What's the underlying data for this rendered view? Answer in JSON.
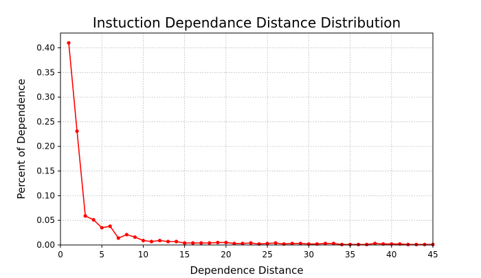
{
  "chart_data": {
    "type": "line",
    "title": "Instuction Dependance Distance Distribution",
    "xlabel": "Dependence Distance",
    "ylabel": "Percent of Dependence",
    "xlim": [
      0,
      45
    ],
    "ylim": [
      0,
      0.43
    ],
    "xticks": [
      "0",
      "5",
      "10",
      "15",
      "20",
      "25",
      "30",
      "35",
      "40",
      "45"
    ],
    "yticks": [
      "0.00",
      "0.05",
      "0.10",
      "0.15",
      "0.20",
      "0.25",
      "0.30",
      "0.35",
      "0.40"
    ],
    "grid": true,
    "grid_style": "dotted",
    "marker": "circle",
    "series": [
      {
        "color": "#ff0000",
        "x": [
          1,
          2,
          3,
          4,
          5,
          6,
          7,
          8,
          9,
          10,
          11,
          12,
          13,
          14,
          15,
          16,
          17,
          18,
          19,
          20,
          21,
          22,
          23,
          24,
          25,
          26,
          27,
          28,
          29,
          30,
          31,
          32,
          33,
          34,
          35,
          36,
          37,
          38,
          39,
          40,
          41,
          42,
          43,
          44,
          45
        ],
        "y": [
          0.41,
          0.231,
          0.059,
          0.051,
          0.035,
          0.038,
          0.014,
          0.021,
          0.016,
          0.009,
          0.007,
          0.009,
          0.007,
          0.007,
          0.004,
          0.004,
          0.004,
          0.004,
          0.005,
          0.005,
          0.003,
          0.003,
          0.004,
          0.002,
          0.003,
          0.004,
          0.002,
          0.003,
          0.003,
          0.002,
          0.002,
          0.003,
          0.003,
          0.001,
          0.001,
          0.001,
          0.001,
          0.003,
          0.002,
          0.002,
          0.002,
          0.001,
          0.001,
          0.001,
          0.001
        ]
      }
    ]
  }
}
